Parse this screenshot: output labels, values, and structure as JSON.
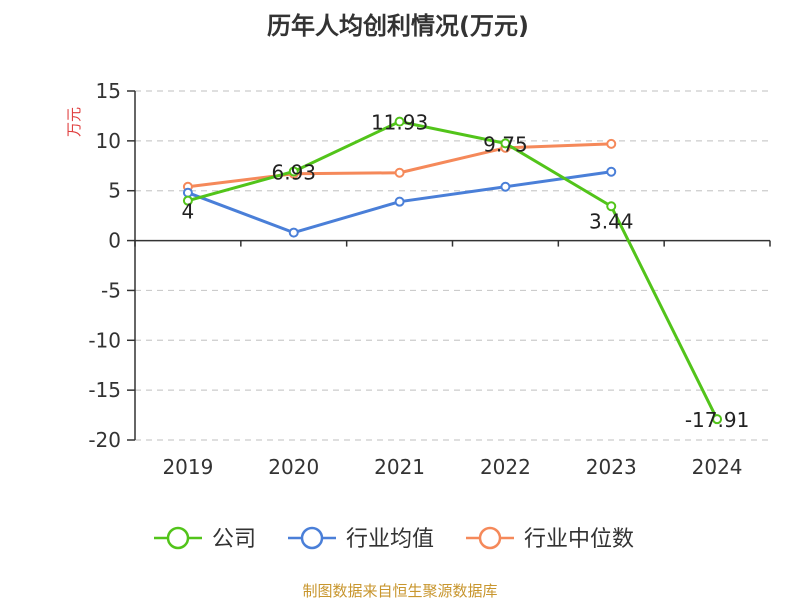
{
  "chart_data": {
    "type": "line",
    "title": "历年人均创利情况(万元)",
    "ylabel": "万元",
    "xlabel": "",
    "categories": [
      "2019",
      "2020",
      "2021",
      "2022",
      "2023",
      "2024"
    ],
    "ylim": [
      -20,
      15
    ],
    "yticks": [
      15,
      10,
      5,
      0,
      -5,
      -10,
      -15,
      -20
    ],
    "grid": true,
    "legend_position": "bottom",
    "series": [
      {
        "name": "公司",
        "color": "#52c41a",
        "values": [
          4,
          6.93,
          11.93,
          9.75,
          3.44,
          -17.91
        ],
        "labels": [
          "4",
          "6.93",
          "11.93",
          "9.75",
          "3.44",
          "-17.91"
        ]
      },
      {
        "name": "行业均值",
        "color": "#4a7fd8",
        "values": [
          4.8,
          0.8,
          3.9,
          5.4,
          6.9,
          null
        ]
      },
      {
        "name": "行业中位数",
        "color": "#f5895a",
        "values": [
          5.4,
          6.7,
          6.8,
          9.3,
          9.7,
          null
        ]
      }
    ]
  },
  "source": "制图数据来自恒生聚源数据库"
}
